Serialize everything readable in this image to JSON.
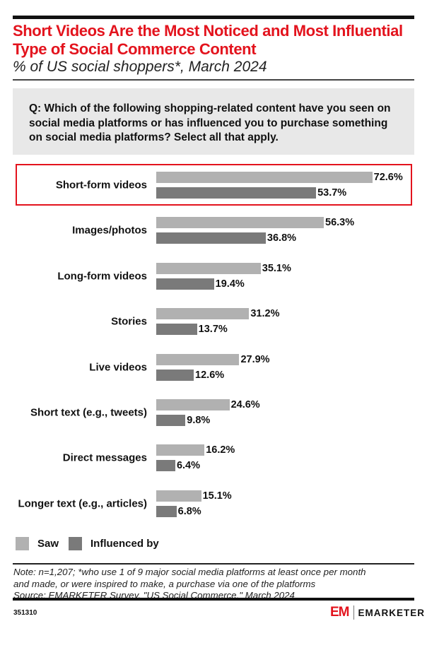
{
  "title": "Short Videos Are the Most Noticed and Most Influential Type of Social Commerce Content",
  "subtitle": "% of US social shoppers*, March 2024",
  "question": "Q: Which of the following shopping-related content have you seen on social media platforms or has influenced you to purchase something on social media platforms? Select all that apply.",
  "chart_data": {
    "type": "bar",
    "orientation": "horizontal",
    "categories": [
      "Short-form videos",
      "Images/photos",
      "Long-form videos",
      "Stories",
      "Live videos",
      "Short text (e.g., tweets)",
      "Direct messages",
      "Longer text (e.g., articles)"
    ],
    "series": [
      {
        "name": "Saw",
        "color": "#b1b1b1",
        "values": [
          72.6,
          56.3,
          35.1,
          31.2,
          27.9,
          24.6,
          16.2,
          15.1
        ]
      },
      {
        "name": "Influenced by",
        "color": "#7a7a7a",
        "values": [
          53.7,
          36.8,
          19.4,
          13.7,
          12.6,
          9.8,
          6.4,
          6.8
        ]
      }
    ],
    "value_format": "%",
    "highlighted_category": "Short-form videos",
    "highlight_color": "#e3131d",
    "legend_position": "bottom-left",
    "grid": false
  },
  "note": [
    "Note: n=1,207; *who use 1 of 9 major social media platforms at least once per month",
    "and made, or were inspired to make, a purchase via one of the platforms",
    "Source: EMARKETER Survey, \"US Social Commerce,\" March 2024"
  ],
  "chart_id": "351310",
  "logo": {
    "mark": "EM",
    "brand": "EMARKETER"
  }
}
